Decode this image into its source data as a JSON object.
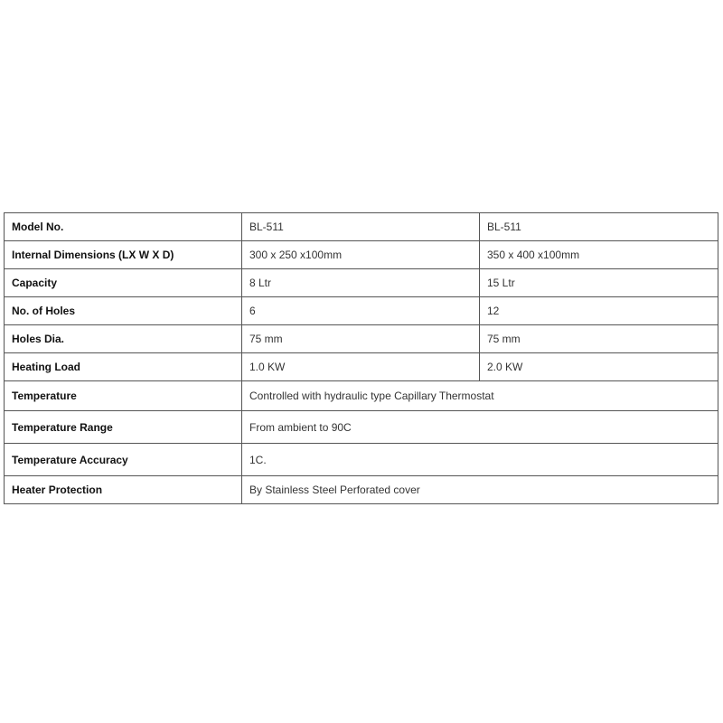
{
  "rows": [
    {
      "label": "Model No.",
      "values": [
        "BL-511",
        "BL-511"
      ]
    },
    {
      "label": "Internal Dimensions (LX W X D)",
      "values": [
        "300 x 250 x100mm",
        "350 x 400 x100mm"
      ]
    },
    {
      "label": "Capacity",
      "values": [
        "8 Ltr",
        "15 Ltr"
      ]
    },
    {
      "label": "No. of Holes",
      "values": [
        "6",
        "12"
      ]
    },
    {
      "label": "Holes Dia.",
      "values": [
        "75 mm",
        "75 mm"
      ]
    },
    {
      "label": "Heating Load",
      "values": [
        "1.0 KW",
        "2.0 KW"
      ]
    },
    {
      "label": "Temperature",
      "values": [
        "Controlled with hydraulic type Capillary Thermostat"
      ]
    },
    {
      "label": "Temperature Range",
      "values": [
        "From ambient to 90C"
      ]
    },
    {
      "label": "Temperature Accuracy",
      "values": [
        "1C."
      ]
    },
    {
      "label": "Heater Protection",
      "values": [
        "By Stainless Steel Perforated cover"
      ]
    }
  ]
}
